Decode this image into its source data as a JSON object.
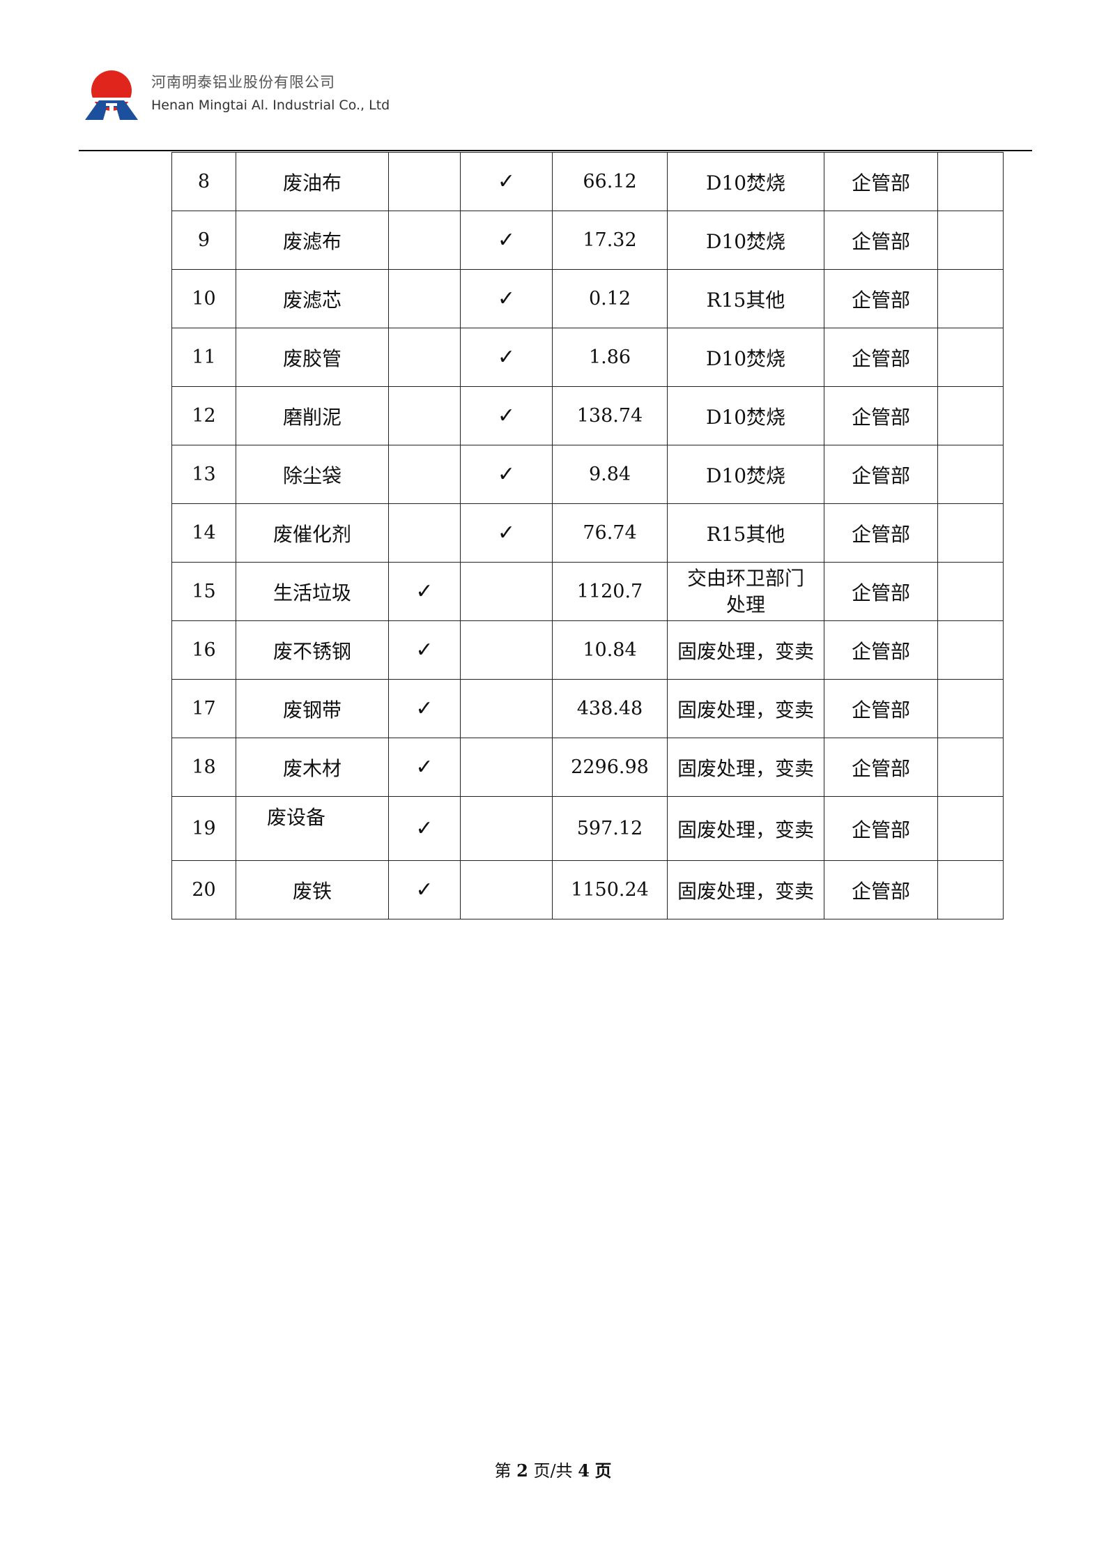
{
  "header": {
    "company_cn": "河南明泰铝业股份有限公司",
    "company_en": "Henan Mingtai Al. Industrial Co., Ltd"
  },
  "table": {
    "rows": [
      {
        "no": "8",
        "name": "废油布",
        "col3": "",
        "col4": "✓",
        "amount": "66.12",
        "method": "D10焚烧",
        "dept": "企管部",
        "note": ""
      },
      {
        "no": "9",
        "name": "废滤布",
        "col3": "",
        "col4": "✓",
        "amount": "17.32",
        "method": "D10焚烧",
        "dept": "企管部",
        "note": ""
      },
      {
        "no": "10",
        "name": "废滤芯",
        "col3": "",
        "col4": "✓",
        "amount": "0.12",
        "method": "R15其他",
        "dept": "企管部",
        "note": ""
      },
      {
        "no": "11",
        "name": "废胶管",
        "col3": "",
        "col4": "✓",
        "amount": "1.86",
        "method": "D10焚烧",
        "dept": "企管部",
        "note": ""
      },
      {
        "no": "12",
        "name": "磨削泥",
        "col3": "",
        "col4": "✓",
        "amount": "138.74",
        "method": "D10焚烧",
        "dept": "企管部",
        "note": ""
      },
      {
        "no": "13",
        "name": "除尘袋",
        "col3": "",
        "col4": "✓",
        "amount": "9.84",
        "method": "D10焚烧",
        "dept": "企管部",
        "note": ""
      },
      {
        "no": "14",
        "name": "废催化剂",
        "col3": "",
        "col4": "✓",
        "amount": "76.74",
        "method": "R15其他",
        "dept": "企管部",
        "note": ""
      },
      {
        "no": "15",
        "name": "生活垃圾",
        "col3": "✓",
        "col4": "",
        "amount": "1120.7",
        "method": "交由环卫部门处理",
        "dept": "企管部",
        "note": ""
      },
      {
        "no": "16",
        "name": "废不锈钢",
        "col3": "✓",
        "col4": "",
        "amount": "10.84",
        "method": "固废处理，变卖",
        "dept": "企管部",
        "note": ""
      },
      {
        "no": "17",
        "name": "废钢带",
        "col3": "✓",
        "col4": "",
        "amount": "438.48",
        "method": "固废处理，变卖",
        "dept": "企管部",
        "note": ""
      },
      {
        "no": "18",
        "name": "废木材",
        "col3": "✓",
        "col4": "",
        "amount": "2296.98",
        "method": "固废处理，变卖",
        "dept": "企管部",
        "note": ""
      },
      {
        "no": "19",
        "name": "废设备",
        "col3": "✓",
        "col4": "",
        "amount": "597.12",
        "method": "固废处理，变卖",
        "dept": "企管部",
        "note": ""
      },
      {
        "no": "20",
        "name": "废铁",
        "col3": "✓",
        "col4": "",
        "amount": "1150.24",
        "method": "固废处理，变卖",
        "dept": "企管部",
        "note": ""
      }
    ]
  },
  "footer": {
    "prefix": "第",
    "page": "2",
    "mid": "页/共",
    "total": "4",
    "suffix": "页"
  },
  "colors": {
    "logo_red": "#e0261c",
    "logo_blue": "#1c4f9c"
  }
}
